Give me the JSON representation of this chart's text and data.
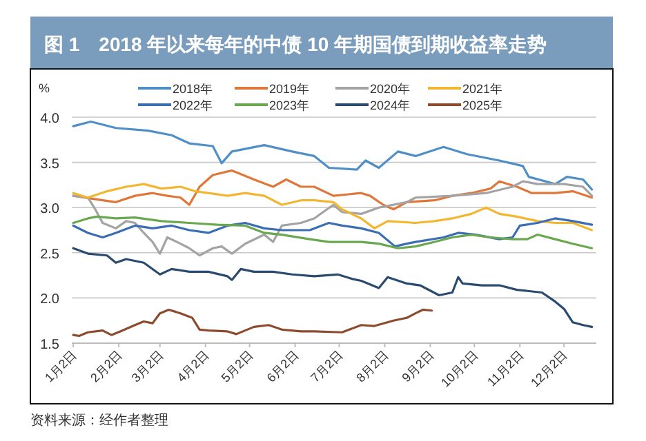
{
  "chart_data": {
    "type": "line",
    "title": "图 1　2018 年以来每年的中债 10 年期国债到期收益率走势",
    "ylabel": "%",
    "annotations": [
      "资料来源：经作者整理"
    ],
    "xlim": [
      "--01-01",
      "--12-24"
    ],
    "xticks": [
      {
        "value": "--01-02",
        "label": "1月2日"
      },
      {
        "value": "--02-02",
        "label": "2月2日"
      },
      {
        "value": "--03-02",
        "label": "3月2日"
      },
      {
        "value": "--04-02",
        "label": "4月2日"
      },
      {
        "value": "--05-02",
        "label": "5月2日"
      },
      {
        "value": "--06-02",
        "label": "6月2日"
      },
      {
        "value": "--07-02",
        "label": "7月2日"
      },
      {
        "value": "--08-02",
        "label": "8月2日"
      },
      {
        "value": "--09-02",
        "label": "9月2日"
      },
      {
        "value": "--10-02",
        "label": "10月2日"
      },
      {
        "value": "--11-02",
        "label": "11月2日"
      },
      {
        "value": "--12-02",
        "label": "12月2日"
      }
    ],
    "ylim": [
      1.5,
      4.0
    ],
    "yticks": [
      1.5,
      {
        "value": 2,
        "label": "2.0"
      },
      2.5,
      {
        "value": 3,
        "label": "3.0"
      },
      3.5,
      {
        "value": 4,
        "label": "4.0"
      }
    ],
    "grid": "y",
    "legend": "top",
    "marker": "none",
    "line_style": "solid",
    "series": [
      {
        "name": "2018年",
        "color": "#4f8fc6",
        "x": [
          "--01-02",
          "--01-14",
          "--01-31",
          "--02-22",
          "--03-10",
          "--03-22",
          "--04-07",
          "--04-13",
          "--04-20",
          "--05-12",
          "--05-31",
          "--06-15",
          "--06-25",
          "--07-14",
          "--07-20",
          "--07-29",
          "--08-11",
          "--08-23",
          "--09-11",
          "--09-27",
          "--10-19",
          "--11-04",
          "--11-08",
          "--11-26",
          "--12-04",
          "--12-15",
          "--12-21"
        ],
        "values": [
          3.9,
          3.95,
          3.88,
          3.85,
          3.8,
          3.71,
          3.68,
          3.49,
          3.62,
          3.69,
          3.62,
          3.57,
          3.44,
          3.42,
          3.52,
          3.44,
          3.62,
          3.57,
          3.67,
          3.59,
          3.52,
          3.46,
          3.34,
          3.26,
          3.34,
          3.31,
          3.2
        ]
      },
      {
        "name": "2019年",
        "color": "#e0773a",
        "x": [
          "--01-02",
          "--01-22",
          "--01-31",
          "--02-13",
          "--02-25",
          "--03-07",
          "--03-16",
          "--03-22",
          "--03-29",
          "--04-07",
          "--04-20",
          "--05-05",
          "--05-18",
          "--05-27",
          "--06-06",
          "--06-15",
          "--06-28",
          "--07-17",
          "--07-23",
          "--08-01",
          "--08-08",
          "--08-17",
          "--09-05",
          "--09-17",
          "--09-30",
          "--10-13",
          "--10-19",
          "--10-31",
          "--11-10",
          "--11-26",
          "--12-08",
          "--12-21"
        ],
        "values": [
          3.13,
          3.08,
          3.06,
          3.13,
          3.16,
          3.13,
          3.11,
          3.03,
          3.23,
          3.36,
          3.41,
          3.31,
          3.23,
          3.31,
          3.23,
          3.23,
          3.13,
          3.16,
          3.13,
          3.03,
          2.98,
          3.06,
          3.08,
          3.13,
          3.16,
          3.21,
          3.29,
          3.23,
          3.16,
          3.16,
          3.18,
          3.11
        ]
      },
      {
        "name": "2020年",
        "color": "#a3a3a3",
        "x": [
          "--01-02",
          "--01-12",
          "--01-17",
          "--01-22",
          "--01-31",
          "--02-07",
          "--02-13",
          "--02-19",
          "--02-25",
          "--03-02",
          "--03-07",
          "--03-16",
          "--03-22",
          "--03-29",
          "--04-07",
          "--04-13",
          "--04-20",
          "--04-29",
          "--05-12",
          "--05-18",
          "--05-24",
          "--06-06",
          "--06-15",
          "--06-28",
          "--07-04",
          "--07-17",
          "--07-29",
          "--08-17",
          "--08-23",
          "--09-17",
          "--10-10",
          "--10-28",
          "--11-04",
          "--11-14",
          "--12-02",
          "--12-15",
          "--12-21"
        ],
        "values": [
          3.13,
          3.11,
          2.98,
          2.83,
          2.77,
          2.85,
          2.83,
          2.72,
          2.62,
          2.49,
          2.67,
          2.6,
          2.55,
          2.47,
          2.55,
          2.57,
          2.49,
          2.6,
          2.7,
          2.62,
          2.8,
          2.83,
          2.88,
          3.03,
          2.95,
          2.93,
          3.0,
          3.06,
          3.11,
          3.13,
          3.16,
          3.23,
          3.29,
          3.26,
          3.26,
          3.23,
          3.13
        ]
      },
      {
        "name": "2021年",
        "color": "#f2b630",
        "x": [
          "--01-02",
          "--01-12",
          "--01-25",
          "--02-07",
          "--02-19",
          "--03-03",
          "--03-16",
          "--03-26",
          "--04-04",
          "--04-17",
          "--04-29",
          "--05-12",
          "--05-24",
          "--06-06",
          "--06-15",
          "--06-28",
          "--07-04",
          "--07-17",
          "--07-26",
          "--08-04",
          "--08-23",
          "--09-05",
          "--09-17",
          "--09-30",
          "--10-10",
          "--10-19",
          "--10-31",
          "--11-14",
          "--11-26",
          "--12-08",
          "--12-21"
        ],
        "values": [
          3.16,
          3.11,
          3.18,
          3.23,
          3.26,
          3.21,
          3.23,
          3.18,
          3.16,
          3.13,
          3.16,
          3.13,
          3.03,
          3.08,
          3.08,
          3.06,
          2.98,
          2.88,
          2.77,
          2.85,
          2.83,
          2.85,
          2.88,
          2.93,
          3.0,
          2.93,
          2.9,
          2.85,
          2.83,
          2.83,
          2.75
        ]
      },
      {
        "name": "2022年",
        "color": "#3b6db4",
        "x": [
          "--01-02",
          "--01-12",
          "--01-22",
          "--01-31",
          "--02-13",
          "--02-25",
          "--03-10",
          "--03-22",
          "--04-04",
          "--04-17",
          "--04-29",
          "--05-12",
          "--05-24",
          "--06-12",
          "--06-25",
          "--07-04",
          "--07-17",
          "--07-29",
          "--08-09",
          "--08-17",
          "--08-23",
          "--09-11",
          "--09-21",
          "--10-03",
          "--10-19",
          "--10-28",
          "--11-02",
          "--11-14",
          "--11-26",
          "--12-08",
          "--12-21"
        ],
        "values": [
          2.8,
          2.72,
          2.67,
          2.72,
          2.8,
          2.77,
          2.8,
          2.75,
          2.72,
          2.8,
          2.83,
          2.77,
          2.75,
          2.75,
          2.83,
          2.8,
          2.77,
          2.72,
          2.57,
          2.6,
          2.62,
          2.67,
          2.72,
          2.7,
          2.65,
          2.67,
          2.8,
          2.83,
          2.88,
          2.85,
          2.81
        ]
      },
      {
        "name": "2023年",
        "color": "#6aa84f",
        "x": [
          "--01-02",
          "--01-12",
          "--01-18",
          "--01-31",
          "--02-13",
          "--03-03",
          "--03-22",
          "--04-10",
          "--04-29",
          "--05-12",
          "--05-24",
          "--06-12",
          "--06-25",
          "--07-04",
          "--07-17",
          "--07-29",
          "--08-11",
          "--08-23",
          "--09-05",
          "--09-17",
          "--09-30",
          "--10-13",
          "--10-28",
          "--11-07",
          "--11-14",
          "--11-26",
          "--12-08",
          "--12-21"
        ],
        "values": [
          2.83,
          2.88,
          2.9,
          2.88,
          2.89,
          2.85,
          2.83,
          2.81,
          2.8,
          2.72,
          2.7,
          2.65,
          2.62,
          2.62,
          2.62,
          2.6,
          2.55,
          2.57,
          2.62,
          2.67,
          2.7,
          2.67,
          2.65,
          2.65,
          2.7,
          2.65,
          2.6,
          2.55
        ]
      },
      {
        "name": "2024年",
        "color": "#2b4a6f",
        "x": [
          "--01-02",
          "--01-12",
          "--01-25",
          "--01-31",
          "--02-07",
          "--02-19",
          "--03-02",
          "--03-10",
          "--03-22",
          "--04-04",
          "--04-17",
          "--04-20",
          "--04-26",
          "--05-05",
          "--05-18",
          "--05-31",
          "--06-15",
          "--07-01",
          "--07-11",
          "--07-17",
          "--07-29",
          "--08-04",
          "--08-17",
          "--08-26",
          "--09-08",
          "--09-17",
          "--09-21",
          "--09-24",
          "--10-07",
          "--10-19",
          "--10-31",
          "--11-17",
          "--11-26",
          "--12-02",
          "--12-08",
          "--12-15",
          "--12-21"
        ],
        "values": [
          2.55,
          2.49,
          2.47,
          2.39,
          2.43,
          2.39,
          2.26,
          2.32,
          2.29,
          2.29,
          2.24,
          2.2,
          2.32,
          2.29,
          2.29,
          2.26,
          2.24,
          2.26,
          2.21,
          2.19,
          2.11,
          2.23,
          2.16,
          2.14,
          2.03,
          2.06,
          2.23,
          2.16,
          2.14,
          2.14,
          2.09,
          2.06,
          1.96,
          1.88,
          1.73,
          1.7,
          1.68
        ]
      },
      {
        "name": "2025年",
        "color": "#8b4b2c",
        "x": [
          "--01-02",
          "--01-06",
          "--01-12",
          "--01-22",
          "--01-28",
          "--02-03",
          "--02-13",
          "--02-19",
          "--02-25",
          "--03-02",
          "--03-08",
          "--03-16",
          "--03-24",
          "--03-29",
          "--04-04",
          "--04-17",
          "--04-23",
          "--05-05",
          "--05-15",
          "--05-24",
          "--06-06",
          "--06-15",
          "--07-04",
          "--07-17",
          "--07-26",
          "--08-08",
          "--08-17",
          "--08-23",
          "--08-28",
          "--09-03"
        ],
        "values": [
          1.59,
          1.58,
          1.62,
          1.64,
          1.59,
          1.63,
          1.7,
          1.74,
          1.72,
          1.83,
          1.87,
          1.83,
          1.78,
          1.65,
          1.64,
          1.63,
          1.6,
          1.68,
          1.7,
          1.65,
          1.63,
          1.63,
          1.62,
          1.7,
          1.69,
          1.75,
          1.78,
          1.83,
          1.87,
          1.86
        ]
      }
    ]
  }
}
